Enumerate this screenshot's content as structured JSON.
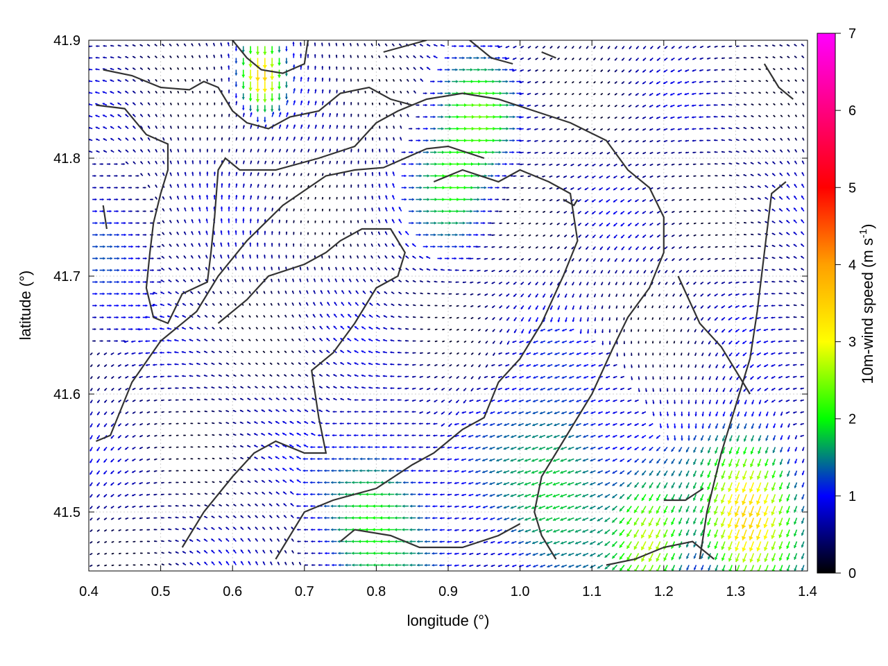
{
  "chart_data": {
    "type": "vector-field",
    "xlabel": "longitude (°)",
    "ylabel": "latitude (°)",
    "colorbar_label_main": "10m-wind speed (m s",
    "colorbar_label_sup": "-1",
    "colorbar_label_close": ")",
    "xlim": [
      0.4,
      1.4
    ],
    "ylim": [
      41.45,
      41.9
    ],
    "x_ticks": [
      {
        "value": 0.4,
        "label": "0.4"
      },
      {
        "value": 0.5,
        "label": "0.5"
      },
      {
        "value": 0.6,
        "label": "0.6"
      },
      {
        "value": 0.7,
        "label": "0.7"
      },
      {
        "value": 0.8,
        "label": "0.8"
      },
      {
        "value": 0.9,
        "label": "0.9"
      },
      {
        "value": 1.0,
        "label": "1.0"
      },
      {
        "value": 1.1,
        "label": "1.1"
      },
      {
        "value": 1.2,
        "label": "1.2"
      },
      {
        "value": 1.3,
        "label": "1.3"
      },
      {
        "value": 1.4,
        "label": "1.4"
      }
    ],
    "y_ticks": [
      {
        "value": 41.5,
        "label": "41.5"
      },
      {
        "value": 41.6,
        "label": "41.6"
      },
      {
        "value": 41.7,
        "label": "41.7"
      },
      {
        "value": 41.8,
        "label": "41.8"
      },
      {
        "value": 41.9,
        "label": "41.9"
      }
    ],
    "colorbar_range": [
      0,
      7
    ],
    "colorbar_ticks": [
      {
        "value": 0,
        "label": "0"
      },
      {
        "value": 1,
        "label": "1"
      },
      {
        "value": 2,
        "label": "2"
      },
      {
        "value": 3,
        "label": "3"
      },
      {
        "value": 4,
        "label": "4"
      },
      {
        "value": 5,
        "label": "5"
      },
      {
        "value": 6,
        "label": "6"
      },
      {
        "value": 7,
        "label": "7"
      }
    ],
    "colormap": [
      "#000000",
      "#0000ff",
      "#00ff00",
      "#ffff00",
      "#ffa000",
      "#ff0000",
      "#ff00ff"
    ],
    "grid": true,
    "grid_spacing": {
      "dlon": 0.01,
      "dlat": 0.01
    },
    "contours": [
      [
        [
          0.41,
          41.56
        ],
        [
          0.43,
          41.565
        ],
        [
          0.46,
          41.61
        ],
        [
          0.5,
          41.645
        ],
        [
          0.55,
          41.67
        ],
        [
          0.58,
          41.7
        ],
        [
          0.62,
          41.73
        ],
        [
          0.67,
          41.76
        ],
        [
          0.73,
          41.785
        ],
        [
          0.77,
          41.79
        ],
        [
          0.81,
          41.792
        ],
        [
          0.84,
          41.8
        ],
        [
          0.87,
          41.808
        ],
        [
          0.9,
          41.81
        ],
        [
          0.95,
          41.8
        ]
      ],
      [
        [
          0.41,
          41.845
        ],
        [
          0.45,
          41.842
        ],
        [
          0.48,
          41.82
        ],
        [
          0.51,
          41.812
        ],
        [
          0.51,
          41.79
        ],
        [
          0.5,
          41.77
        ],
        [
          0.49,
          41.745
        ],
        [
          0.485,
          41.72
        ],
        [
          0.48,
          41.69
        ],
        [
          0.49,
          41.665
        ],
        [
          0.51,
          41.66
        ],
        [
          0.53,
          41.685
        ],
        [
          0.565,
          41.695
        ],
        [
          0.57,
          41.72
        ],
        [
          0.575,
          41.75
        ],
        [
          0.58,
          41.79
        ],
        [
          0.59,
          41.8
        ],
        [
          0.61,
          41.79
        ],
        [
          0.66,
          41.79
        ],
        [
          0.72,
          41.8
        ],
        [
          0.77,
          41.81
        ],
        [
          0.8,
          41.83
        ],
        [
          0.83,
          41.84
        ],
        [
          0.87,
          41.85
        ],
        [
          0.92,
          41.855
        ],
        [
          0.97,
          41.85
        ],
        [
          1.02,
          41.84
        ],
        [
          1.07,
          41.83
        ],
        [
          1.12,
          41.815
        ],
        [
          1.15,
          41.79
        ],
        [
          1.18,
          41.775
        ],
        [
          1.2,
          41.75
        ],
        [
          1.2,
          41.72
        ],
        [
          1.18,
          41.69
        ],
        [
          1.15,
          41.665
        ],
        [
          1.13,
          41.64
        ],
        [
          1.1,
          41.6
        ],
        [
          1.06,
          41.56
        ],
        [
          1.03,
          41.53
        ],
        [
          1.02,
          41.5
        ],
        [
          1.03,
          41.48
        ],
        [
          1.05,
          41.46
        ]
      ],
      [
        [
          0.42,
          41.875
        ],
        [
          0.46,
          41.87
        ],
        [
          0.5,
          41.86
        ],
        [
          0.54,
          41.858
        ],
        [
          0.56,
          41.865
        ],
        [
          0.58,
          41.86
        ],
        [
          0.6,
          41.84
        ],
        [
          0.62,
          41.83
        ],
        [
          0.65,
          41.825
        ],
        [
          0.68,
          41.835
        ],
        [
          0.72,
          41.84
        ],
        [
          0.75,
          41.855
        ],
        [
          0.79,
          41.86
        ],
        [
          0.82,
          41.85
        ],
        [
          0.85,
          41.845
        ]
      ],
      [
        [
          0.6,
          41.9
        ],
        [
          0.62,
          41.885
        ],
        [
          0.64,
          41.875
        ],
        [
          0.67,
          41.872
        ],
        [
          0.7,
          41.88
        ],
        [
          0.705,
          41.9
        ]
      ],
      [
        [
          0.81,
          41.89
        ],
        [
          0.84,
          41.895
        ],
        [
          0.87,
          41.9
        ]
      ],
      [
        [
          0.93,
          41.9
        ],
        [
          0.96,
          41.885
        ],
        [
          0.99,
          41.88
        ]
      ],
      [
        [
          1.03,
          41.89
        ],
        [
          1.05,
          41.885
        ]
      ],
      [
        [
          1.34,
          41.88
        ],
        [
          1.36,
          41.86
        ],
        [
          1.38,
          41.85
        ]
      ],
      [
        [
          0.42,
          41.76
        ],
        [
          0.425,
          41.74
        ]
      ],
      [
        [
          0.53,
          41.47
        ],
        [
          0.56,
          41.5
        ],
        [
          0.6,
          41.53
        ],
        [
          0.63,
          41.55
        ],
        [
          0.66,
          41.56
        ],
        [
          0.7,
          41.55
        ],
        [
          0.73,
          41.55
        ],
        [
          0.72,
          41.58
        ],
        [
          0.71,
          41.62
        ],
        [
          0.74,
          41.635
        ],
        [
          0.77,
          41.66
        ],
        [
          0.8,
          41.69
        ],
        [
          0.83,
          41.7
        ],
        [
          0.84,
          41.72
        ],
        [
          0.82,
          41.74
        ],
        [
          0.78,
          41.74
        ],
        [
          0.75,
          41.73
        ],
        [
          0.73,
          41.72
        ],
        [
          0.7,
          41.71
        ],
        [
          0.65,
          41.7
        ],
        [
          0.62,
          41.68
        ],
        [
          0.58,
          41.66
        ]
      ],
      [
        [
          0.66,
          41.46
        ],
        [
          0.7,
          41.5
        ],
        [
          0.74,
          41.51
        ],
        [
          0.8,
          41.52
        ],
        [
          0.85,
          41.54
        ],
        [
          0.88,
          41.55
        ],
        [
          0.92,
          41.57
        ],
        [
          0.95,
          41.58
        ],
        [
          0.97,
          41.61
        ],
        [
          1.0,
          41.63
        ],
        [
          1.03,
          41.66
        ],
        [
          1.06,
          41.7
        ],
        [
          1.08,
          41.73
        ],
        [
          1.07,
          41.77
        ],
        [
          1.04,
          41.78
        ],
        [
          1.0,
          41.79
        ],
        [
          0.97,
          41.78
        ],
        [
          0.92,
          41.79
        ],
        [
          0.88,
          41.78
        ]
      ],
      [
        [
          0.75,
          41.475
        ],
        [
          0.77,
          41.485
        ],
        [
          0.82,
          41.48
        ],
        [
          0.86,
          41.47
        ],
        [
          0.92,
          41.47
        ],
        [
          0.97,
          41.48
        ],
        [
          1.0,
          41.49
        ]
      ],
      [
        [
          1.12,
          41.455
        ],
        [
          1.16,
          41.46
        ],
        [
          1.2,
          41.47
        ],
        [
          1.24,
          41.475
        ],
        [
          1.27,
          41.46
        ]
      ],
      [
        [
          1.2,
          41.51
        ],
        [
          1.23,
          41.51
        ],
        [
          1.255,
          41.52
        ]
      ],
      [
        [
          1.25,
          41.46
        ],
        [
          1.26,
          41.5
        ],
        [
          1.28,
          41.55
        ],
        [
          1.3,
          41.59
        ],
        [
          1.32,
          41.63
        ],
        [
          1.33,
          41.67
        ],
        [
          1.34,
          41.72
        ],
        [
          1.35,
          41.77
        ],
        [
          1.37,
          41.78
        ]
      ],
      [
        [
          1.32,
          41.6
        ],
        [
          1.3,
          41.62
        ],
        [
          1.28,
          41.64
        ],
        [
          1.25,
          41.66
        ],
        [
          1.22,
          41.7
        ]
      ],
      [
        [
          1.06,
          41.765
        ],
        [
          1.075,
          41.76
        ],
        [
          1.08,
          41.765
        ]
      ]
    ],
    "wind_regions": [
      {
        "lon": 0.935,
        "lat": 41.835,
        "speed": 2.6,
        "dir_deg": 0,
        "r": 0.05
      },
      {
        "lon": 0.9,
        "lat": 41.78,
        "speed": 2.3,
        "dir_deg": 0,
        "r": 0.05
      },
      {
        "lon": 0.64,
        "lat": 41.875,
        "speed": 3.8,
        "dir_deg": -90,
        "r": 0.03
      },
      {
        "lon": 1.32,
        "lat": 41.5,
        "speed": 3.8,
        "dir_deg": 250,
        "r": 0.07
      },
      {
        "lon": 1.18,
        "lat": 41.48,
        "speed": 3.2,
        "dir_deg": 250,
        "r": 0.05
      },
      {
        "lon": 0.8,
        "lat": 41.49,
        "speed": 2.2,
        "dir_deg": 180,
        "r": 0.08
      },
      {
        "lon": 1.05,
        "lat": 41.52,
        "speed": 2.0,
        "dir_deg": 200,
        "r": 0.1
      },
      {
        "lon": 0.42,
        "lat": 41.72,
        "speed": 1.4,
        "dir_deg": 0,
        "r": 0.06
      }
    ]
  }
}
